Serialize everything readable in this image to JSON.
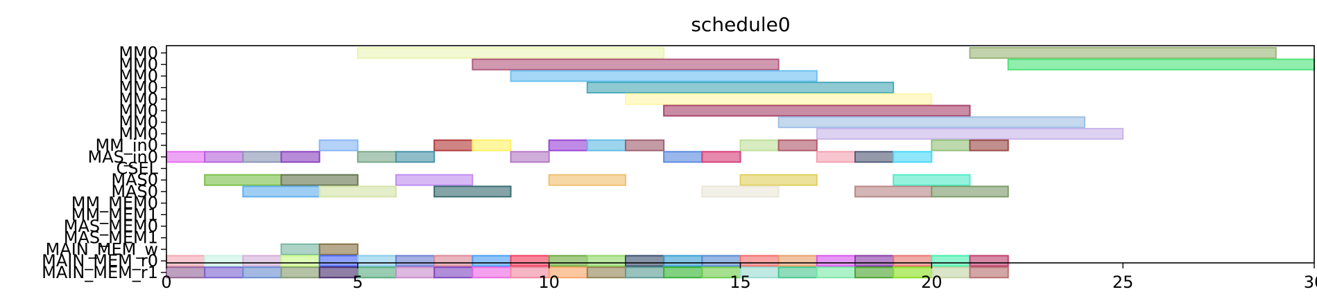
{
  "chart_data": {
    "type": "gantt",
    "title": "schedule0",
    "xlabel": "",
    "ylabel": "",
    "xlim": [
      0,
      30
    ],
    "x_ticks": [
      0,
      5,
      10,
      15,
      20,
      25,
      30
    ],
    "grid": false,
    "rows": [
      {
        "label": "MM0",
        "bars": [
          {
            "start": 5,
            "end": 13,
            "color": "#eaf4b4"
          },
          {
            "start": 21,
            "end": 29,
            "color": "#9bb67a"
          }
        ]
      },
      {
        "label": "MM0",
        "bars": [
          {
            "start": 8,
            "end": 16,
            "color": "#b35a80"
          },
          {
            "start": 22,
            "end": 30,
            "color": "#4ee37a"
          }
        ]
      },
      {
        "label": "MM0",
        "bars": [
          {
            "start": 9,
            "end": 17,
            "color": "#6cc0f0"
          }
        ]
      },
      {
        "label": "MM0",
        "bars": [
          {
            "start": 11,
            "end": 19,
            "color": "#4aaab8"
          }
        ]
      },
      {
        "label": "MM0",
        "bars": [
          {
            "start": 12,
            "end": 20,
            "color": "#fff6aa"
          }
        ]
      },
      {
        "label": "MM0",
        "bars": [
          {
            "start": 13,
            "end": 21,
            "color": "#a8456c"
          }
        ]
      },
      {
        "label": "MM0",
        "bars": [
          {
            "start": 16,
            "end": 24,
            "color": "#a0c0e4"
          }
        ]
      },
      {
        "label": "MM0",
        "bars": [
          {
            "start": 17,
            "end": 25,
            "color": "#c8b6ea"
          }
        ]
      },
      {
        "label": "MM_in0",
        "bars": [
          {
            "start": 4,
            "end": 5,
            "color": "#88b6f4"
          },
          {
            "start": 7,
            "end": 8,
            "color": "#b33a3a"
          },
          {
            "start": 8,
            "end": 9,
            "color": "#fff066"
          },
          {
            "start": 10,
            "end": 11,
            "color": "#9a44d6"
          },
          {
            "start": 11,
            "end": 12,
            "color": "#62bce4"
          },
          {
            "start": 12,
            "end": 13,
            "color": "#a06070"
          },
          {
            "start": 15,
            "end": 16,
            "color": "#bfe09a"
          },
          {
            "start": 16,
            "end": 17,
            "color": "#b05a6a"
          },
          {
            "start": 20,
            "end": 21,
            "color": "#94c27a"
          },
          {
            "start": 21,
            "end": 22,
            "color": "#9a4a48"
          }
        ]
      },
      {
        "label": "MAS_in0",
        "bars": [
          {
            "start": 0,
            "end": 1,
            "color": "#e46ef0"
          },
          {
            "start": 1,
            "end": 2,
            "color": "#b664dc"
          },
          {
            "start": 2,
            "end": 3,
            "color": "#8c96b4"
          },
          {
            "start": 3,
            "end": 4,
            "color": "#8a44c0"
          },
          {
            "start": 5,
            "end": 6,
            "color": "#7aa88a"
          },
          {
            "start": 6,
            "end": 7,
            "color": "#4a94a8"
          },
          {
            "start": 9,
            "end": 10,
            "color": "#b47ac6"
          },
          {
            "start": 13,
            "end": 14,
            "color": "#5c8ae0"
          },
          {
            "start": 14,
            "end": 15,
            "color": "#d8407a"
          },
          {
            "start": 17,
            "end": 18,
            "color": "#f4a2b0"
          },
          {
            "start": 18,
            "end": 19,
            "color": "#545c78"
          },
          {
            "start": 19,
            "end": 20,
            "color": "#4ad8f8"
          }
        ]
      },
      {
        "label": "CSEL",
        "bars": []
      },
      {
        "label": "MAS0",
        "bars": [
          {
            "start": 1,
            "end": 3,
            "color": "#7cc04a"
          },
          {
            "start": 3,
            "end": 5,
            "color": "#687650"
          },
          {
            "start": 6,
            "end": 8,
            "color": "#c08ef0"
          },
          {
            "start": 10,
            "end": 12,
            "color": "#f0c070"
          },
          {
            "start": 15,
            "end": 17,
            "color": "#e0d060"
          },
          {
            "start": 19,
            "end": 21,
            "color": "#54ecc8"
          }
        ]
      },
      {
        "label": "MAS0",
        "bars": [
          {
            "start": 2,
            "end": 4,
            "color": "#62b0ec"
          },
          {
            "start": 4,
            "end": 6,
            "color": "#d4e4a8"
          },
          {
            "start": 7,
            "end": 9,
            "color": "#3a6c72"
          },
          {
            "start": 14,
            "end": 16,
            "color": "#ece6da"
          },
          {
            "start": 18,
            "end": 20,
            "color": "#b88888"
          },
          {
            "start": 20,
            "end": 22,
            "color": "#7c9c6a"
          }
        ]
      },
      {
        "label": "MM_MEM0",
        "bars": []
      },
      {
        "label": "MM_MEM1",
        "bars": []
      },
      {
        "label": "MAS_MEM0",
        "bars": []
      },
      {
        "label": "MAS_MEM1",
        "bars": []
      },
      {
        "label": "MAIN_MEM_w",
        "bars": [
          {
            "start": 3,
            "end": 4,
            "color": "#7ab8a4"
          },
          {
            "start": 4,
            "end": 5,
            "color": "#8a7448"
          }
        ]
      },
      {
        "label": "MAIN_MEM_r0",
        "bars": [
          {
            "start": 0,
            "end": 1,
            "color": "#f4a8b4"
          },
          {
            "start": 1,
            "end": 2,
            "color": "#c8f4e4"
          },
          {
            "start": 2,
            "end": 3,
            "color": "#d4b0d8"
          },
          {
            "start": 3,
            "end": 4,
            "color": "#c8fa88"
          },
          {
            "start": 4,
            "end": 5,
            "color": "#4a68f8"
          },
          {
            "start": 5,
            "end": 6,
            "color": "#88ccec"
          },
          {
            "start": 6,
            "end": 7,
            "color": "#6c7ed4"
          },
          {
            "start": 7,
            "end": 8,
            "color": "#dc8898"
          },
          {
            "start": 8,
            "end": 9,
            "color": "#4aa0f8"
          },
          {
            "start": 9,
            "end": 10,
            "color": "#f43c5c"
          },
          {
            "start": 10,
            "end": 11,
            "color": "#6eac3c"
          },
          {
            "start": 11,
            "end": 12,
            "color": "#90d868"
          },
          {
            "start": 12,
            "end": 13,
            "color": "#3e5070"
          },
          {
            "start": 13,
            "end": 14,
            "color": "#3aa0d4"
          },
          {
            "start": 14,
            "end": 15,
            "color": "#5a8ad4"
          },
          {
            "start": 15,
            "end": 16,
            "color": "#f46c6c"
          },
          {
            "start": 16,
            "end": 17,
            "color": "#e8a06c"
          },
          {
            "start": 17,
            "end": 18,
            "color": "#d858f0"
          },
          {
            "start": 18,
            "end": 19,
            "color": "#8a3aa8"
          },
          {
            "start": 19,
            "end": 20,
            "color": "#e87470"
          },
          {
            "start": 20,
            "end": 21,
            "color": "#48f0b0"
          },
          {
            "start": 21,
            "end": 22,
            "color": "#c04070"
          }
        ]
      },
      {
        "label": "MAIN_MEM_r1",
        "bars": [
          {
            "start": 0,
            "end": 1,
            "color": "#946498"
          },
          {
            "start": 1,
            "end": 2,
            "color": "#7c64d0"
          },
          {
            "start": 2,
            "end": 3,
            "color": "#6a8ed0"
          },
          {
            "start": 3,
            "end": 4,
            "color": "#889c70"
          },
          {
            "start": 4,
            "end": 5,
            "color": "#4a3070"
          },
          {
            "start": 5,
            "end": 6,
            "color": "#5aac80"
          },
          {
            "start": 6,
            "end": 7,
            "color": "#c88ccc"
          },
          {
            "start": 7,
            "end": 8,
            "color": "#8048c0"
          },
          {
            "start": 8,
            "end": 9,
            "color": "#ec68e4"
          },
          {
            "start": 9,
            "end": 10,
            "color": "#f088a0"
          },
          {
            "start": 10,
            "end": 11,
            "color": "#f8a468"
          },
          {
            "start": 11,
            "end": 12,
            "color": "#948454"
          },
          {
            "start": 12,
            "end": 13,
            "color": "#5a9c94"
          },
          {
            "start": 13,
            "end": 14,
            "color": "#34b434"
          },
          {
            "start": 14,
            "end": 15,
            "color": "#70cc4c"
          },
          {
            "start": 15,
            "end": 16,
            "color": "#98dcd0"
          },
          {
            "start": 16,
            "end": 17,
            "color": "#4ac890"
          },
          {
            "start": 17,
            "end": 18,
            "color": "#7ae8a8"
          },
          {
            "start": 18,
            "end": 19,
            "color": "#4ca430"
          },
          {
            "start": 19,
            "end": 20,
            "color": "#8ae020"
          },
          {
            "start": 20,
            "end": 21,
            "color": "#c4d4a4"
          },
          {
            "start": 21,
            "end": 22,
            "color": "#b87070"
          }
        ]
      }
    ]
  }
}
